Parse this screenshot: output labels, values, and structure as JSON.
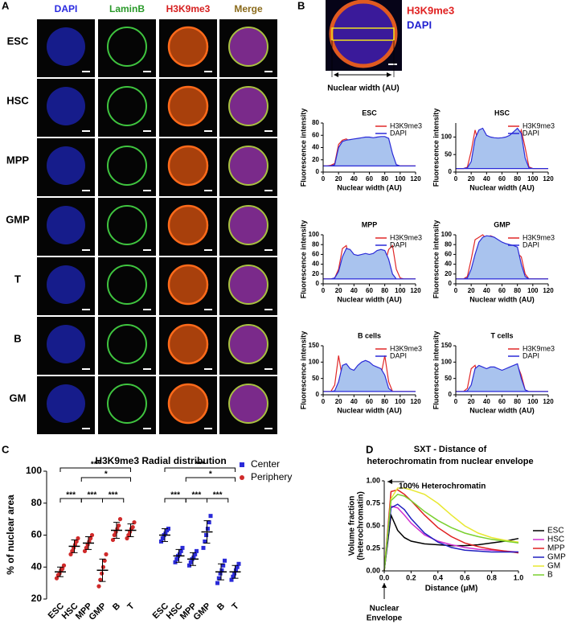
{
  "panel_labels": [
    "A",
    "B",
    "C",
    "D"
  ],
  "panel_a": {
    "columns": [
      "DAPI",
      "LaminB",
      "H3K9me3",
      "Merge"
    ],
    "column_colors": [
      "#2a2ae0",
      "#2a9a2a",
      "#d62020",
      "#8a6a1a"
    ],
    "rows": [
      "ESC",
      "HSC",
      "MPP",
      "GMP",
      "T",
      "B",
      "GM"
    ]
  },
  "panel_b_image": {
    "labels": [
      "H3K9me3",
      "DAPI"
    ],
    "label_colors": [
      "#e02020",
      "#2020d0"
    ],
    "axis_label": "Nuclear  width (AU)"
  },
  "chart_data": [
    {
      "type": "line",
      "title": "ESC",
      "x_label": "Nuclear  width (AU)",
      "y_label": "Fluorescence intensity",
      "x": [
        0,
        5,
        10,
        15,
        20,
        25,
        30,
        35,
        40,
        45,
        50,
        55,
        60,
        65,
        70,
        75,
        80,
        85,
        90,
        95,
        100,
        105,
        110,
        115,
        120
      ],
      "xlim": [
        0,
        120
      ],
      "xticks": [
        0,
        20,
        40,
        60,
        80,
        100,
        120
      ],
      "ylim": [
        0,
        80
      ],
      "yticks": [
        0,
        20,
        40,
        60,
        80
      ],
      "legend": "upper right",
      "series": [
        {
          "name": "H3K9me3",
          "color": "#e02828",
          "values": [
            10,
            10,
            11,
            14,
            45,
            52,
            54,
            50,
            50,
            52,
            53,
            52,
            54,
            53,
            55,
            52,
            50,
            45,
            25,
            12,
            10,
            10,
            10,
            10,
            10
          ]
        },
        {
          "name": "DAPI",
          "color": "#2a2ad8",
          "fill": "#a9c3ee",
          "values": [
            10,
            10,
            10,
            12,
            40,
            50,
            52,
            53,
            54,
            55,
            56,
            57,
            57,
            56,
            57,
            58,
            58,
            55,
            30,
            12,
            10,
            10,
            10,
            10,
            10
          ]
        }
      ]
    },
    {
      "type": "line",
      "title": "HSC",
      "x_label": "Nuclear  width (AU)",
      "y_label": "Fluorescence intensity",
      "x": [
        0,
        5,
        10,
        15,
        20,
        25,
        30,
        35,
        40,
        45,
        50,
        55,
        60,
        65,
        70,
        75,
        80,
        85,
        90,
        95,
        100,
        105,
        110,
        115,
        120
      ],
      "xlim": [
        0,
        120
      ],
      "xticks": [
        0,
        20,
        40,
        60,
        80,
        100,
        120
      ],
      "ylim": [
        0,
        140
      ],
      "yticks": [
        0,
        50,
        100
      ],
      "legend": "upper right",
      "series": [
        {
          "name": "H3K9me3",
          "color": "#e02828",
          "values": [
            10,
            10,
            10,
            14,
            60,
            120,
            80,
            55,
            45,
            45,
            45,
            45,
            45,
            45,
            50,
            60,
            90,
            120,
            70,
            15,
            10,
            10,
            10,
            10,
            10
          ]
        },
        {
          "name": "DAPI",
          "color": "#2a2ad8",
          "fill": "#a9c3ee",
          "values": [
            10,
            10,
            10,
            12,
            30,
            95,
            120,
            125,
            105,
            100,
            98,
            97,
            98,
            100,
            105,
            115,
            125,
            110,
            40,
            12,
            10,
            10,
            10,
            10,
            10
          ]
        }
      ]
    },
    {
      "type": "line",
      "title": "MPP",
      "x_label": "Nuclear  width (AU)",
      "y_label": "Fluorescence intensity",
      "x": [
        0,
        5,
        10,
        15,
        20,
        25,
        30,
        35,
        40,
        45,
        50,
        55,
        60,
        65,
        70,
        75,
        80,
        85,
        90,
        95,
        100,
        105,
        110,
        115,
        120
      ],
      "xlim": [
        0,
        120
      ],
      "xticks": [
        0,
        20,
        40,
        60,
        80,
        100,
        120
      ],
      "ylim": [
        0,
        100
      ],
      "yticks": [
        0,
        20,
        40,
        60,
        80,
        100
      ],
      "legend": "upper right",
      "series": [
        {
          "name": "H3K9me3",
          "color": "#e02828",
          "values": [
            10,
            10,
            10,
            12,
            30,
            72,
            78,
            45,
            30,
            28,
            30,
            28,
            28,
            30,
            30,
            35,
            40,
            70,
            78,
            30,
            12,
            10,
            10,
            10,
            10
          ]
        },
        {
          "name": "DAPI",
          "color": "#2a2ad8",
          "fill": "#a9c3ee",
          "values": [
            10,
            10,
            10,
            12,
            25,
            55,
            72,
            70,
            60,
            58,
            60,
            62,
            60,
            62,
            68,
            70,
            68,
            50,
            20,
            10,
            10,
            10,
            10,
            10,
            10
          ]
        }
      ]
    },
    {
      "type": "line",
      "title": "GMP",
      "x_label": "Nuclear  width (AU)",
      "y_label": "Fluorescence intensity",
      "x": [
        0,
        5,
        10,
        15,
        20,
        25,
        30,
        35,
        40,
        45,
        50,
        55,
        60,
        65,
        70,
        75,
        80,
        85,
        90,
        95,
        100,
        105,
        110,
        115,
        120
      ],
      "xlim": [
        0,
        120
      ],
      "xticks": [
        0,
        20,
        40,
        60,
        80,
        100,
        120
      ],
      "ylim": [
        0,
        100
      ],
      "yticks": [
        0,
        20,
        40,
        60,
        80,
        100
      ],
      "legend": "upper right",
      "series": [
        {
          "name": "H3K9me3",
          "color": "#e02828",
          "values": [
            10,
            10,
            10,
            15,
            50,
            90,
            95,
            100,
            92,
            98,
            95,
            88,
            82,
            75,
            70,
            65,
            62,
            55,
            20,
            10,
            10,
            10,
            10,
            10,
            10
          ]
        },
        {
          "name": "DAPI",
          "color": "#2a2ad8",
          "fill": "#a9c3ee",
          "values": [
            10,
            10,
            10,
            12,
            30,
            60,
            85,
            95,
            98,
            97,
            95,
            90,
            85,
            82,
            80,
            78,
            75,
            40,
            15,
            10,
            10,
            10,
            10,
            10,
            10
          ]
        }
      ]
    },
    {
      "type": "line",
      "title": "B cells",
      "x_label": "Nuclear  width (AU)",
      "y_label": "Fluorescence intensity",
      "x": [
        0,
        5,
        10,
        15,
        20,
        25,
        30,
        35,
        40,
        45,
        50,
        55,
        60,
        65,
        70,
        75,
        80,
        85,
        90,
        95,
        100,
        105,
        110,
        115,
        120
      ],
      "xlim": [
        0,
        120
      ],
      "xticks": [
        0,
        20,
        40,
        60,
        80,
        100,
        120
      ],
      "ylim": [
        0,
        150
      ],
      "yticks": [
        0,
        50,
        100,
        150
      ],
      "legend": "upper right",
      "series": [
        {
          "name": "H3K9me3",
          "color": "#e02828",
          "values": [
            10,
            10,
            10,
            30,
            120,
            50,
            25,
            20,
            20,
            20,
            20,
            20,
            20,
            20,
            25,
            60,
            120,
            40,
            10,
            10,
            10,
            10,
            10,
            10,
            10
          ]
        },
        {
          "name": "DAPI",
          "color": "#2a2ad8",
          "fill": "#a9c3ee",
          "values": [
            10,
            10,
            10,
            12,
            40,
            90,
            95,
            80,
            75,
            90,
            100,
            105,
            100,
            90,
            85,
            80,
            60,
            20,
            10,
            10,
            10,
            10,
            10,
            10,
            10
          ]
        }
      ]
    },
    {
      "type": "line",
      "title": "T cells",
      "x_label": "Nuclear  width (AU)",
      "y_label": "Fluorescence intensity",
      "x": [
        0,
        5,
        10,
        15,
        20,
        25,
        30,
        35,
        40,
        45,
        50,
        55,
        60,
        65,
        70,
        75,
        80,
        85,
        90,
        95,
        100,
        105,
        110,
        115,
        120
      ],
      "xlim": [
        0,
        120
      ],
      "xticks": [
        0,
        20,
        40,
        60,
        80,
        100,
        120
      ],
      "ylim": [
        0,
        150
      ],
      "yticks": [
        0,
        50,
        100,
        150
      ],
      "legend": "upper right",
      "series": [
        {
          "name": "H3K9me3",
          "color": "#e02828",
          "values": [
            10,
            10,
            10,
            20,
            80,
            90,
            40,
            25,
            22,
            22,
            22,
            22,
            22,
            25,
            30,
            50,
            90,
            60,
            15,
            10,
            10,
            10,
            10,
            10,
            10
          ]
        },
        {
          "name": "DAPI",
          "color": "#2a2ad8",
          "fill": "#a9c3ee",
          "values": [
            10,
            10,
            10,
            12,
            30,
            80,
            90,
            85,
            80,
            85,
            85,
            80,
            75,
            80,
            85,
            90,
            95,
            50,
            15,
            10,
            10,
            10,
            10,
            10,
            10
          ]
        }
      ]
    },
    {
      "type": "strip",
      "title": "H3K9me3 Radial distribution",
      "y_label": "% of nuclear area",
      "categories": [
        "ESC",
        "HSC",
        "MPP",
        "GMP",
        "B",
        "T"
      ],
      "ylim": [
        20,
        100
      ],
      "yticks": [
        20,
        40,
        60,
        80,
        100
      ],
      "legend": "upper right",
      "series": [
        {
          "name": "Center",
          "color": "#2a2ad8",
          "marker": "square",
          "values": [
            60,
            47,
            45,
            62,
            37,
            37
          ],
          "errors": [
            4,
            4,
            4,
            7,
            5,
            4
          ],
          "points": [
            [
              56,
              58,
              60,
              61,
              63,
              64
            ],
            [
              43,
              45,
              47,
              48,
              50,
              52
            ],
            [
              41,
              43,
              45,
              46,
              48,
              50
            ],
            [
              52,
              56,
              60,
              64,
              68,
              72
            ],
            [
              30,
              33,
              36,
              38,
              41,
              44
            ],
            [
              32,
              34,
              36,
              38,
              40,
              42
            ]
          ]
        },
        {
          "name": "Periphery",
          "color": "#d02a2a",
          "marker": "circle",
          "values": [
            37,
            53,
            55,
            38,
            63,
            63
          ],
          "errors": [
            3,
            4,
            4,
            7,
            5,
            4
          ],
          "points": [
            [
              33,
              35,
              36,
              38,
              39,
              41
            ],
            [
              48,
              50,
              52,
              54,
              56,
              58
            ],
            [
              50,
              52,
              54,
              56,
              58,
              60
            ],
            [
              28,
              32,
              36,
              40,
              44,
              48
            ],
            [
              57,
              60,
              62,
              64,
              66,
              70
            ],
            [
              58,
              60,
              62,
              64,
              65,
              68
            ]
          ]
        }
      ],
      "annotations": [
        "***",
        "*",
        "***",
        "***",
        "***",
        "***",
        "*",
        "***",
        "***",
        "***"
      ]
    },
    {
      "type": "line",
      "title": [
        "SXT - Distance of",
        "heterochromatin from nuclear envelope"
      ],
      "x_label": "Distance (μM)",
      "y_label": [
        "Volume fraction",
        "(heterochromatin)"
      ],
      "x": [
        0,
        0.05,
        0.1,
        0.15,
        0.2,
        0.3,
        0.4,
        0.5,
        0.6,
        0.7,
        0.8,
        0.9,
        1.0
      ],
      "xlim": [
        0,
        1
      ],
      "xticks": [
        {
          "value": 0,
          "label": "0.0"
        },
        0.2,
        0.4,
        0.6,
        0.8,
        {
          "value": 1,
          "label": "1.0"
        }
      ],
      "ylim": [
        0,
        1
      ],
      "yticks": [
        {
          "value": 0,
          "label": "0.00"
        },
        {
          "value": 0.25,
          "label": "0.25"
        },
        {
          "value": 0.5,
          "label": "0.50"
        },
        {
          "value": 0.75,
          "label": "0.75"
        },
        {
          "value": 1,
          "label": "1.00"
        }
      ],
      "legend": "right",
      "annotations": [
        "100% Heterochromatin",
        [
          "Nuclear",
          "Envelope"
        ]
      ],
      "series": [
        {
          "name": "ESC",
          "color": "#000000",
          "values": [
            0,
            0.62,
            0.45,
            0.37,
            0.33,
            0.3,
            0.29,
            0.28,
            0.28,
            0.29,
            0.31,
            0.33,
            0.36
          ]
        },
        {
          "name": "HSC",
          "color": "#d030d0",
          "values": [
            0,
            0.72,
            0.7,
            0.62,
            0.53,
            0.4,
            0.33,
            0.29,
            0.26,
            0.24,
            0.23,
            0.22,
            0.21
          ]
        },
        {
          "name": "MPP",
          "color": "#e02020",
          "values": [
            0,
            0.88,
            0.9,
            0.85,
            0.78,
            0.62,
            0.48,
            0.38,
            0.31,
            0.27,
            0.24,
            0.22,
            0.2
          ]
        },
        {
          "name": "GMP",
          "color": "#2020c0",
          "values": [
            0,
            0.7,
            0.74,
            0.68,
            0.58,
            0.42,
            0.32,
            0.26,
            0.23,
            0.22,
            0.21,
            0.21,
            0.21
          ]
        },
        {
          "name": "GM",
          "color": "#e8e830",
          "values": [
            0,
            0.8,
            0.92,
            0.92,
            0.9,
            0.85,
            0.75,
            0.62,
            0.5,
            0.42,
            0.37,
            0.34,
            0.32
          ]
        },
        {
          "name": "B",
          "color": "#7ad030",
          "values": [
            0,
            0.78,
            0.85,
            0.83,
            0.78,
            0.66,
            0.56,
            0.48,
            0.42,
            0.38,
            0.35,
            0.33,
            0.31
          ]
        }
      ]
    }
  ]
}
